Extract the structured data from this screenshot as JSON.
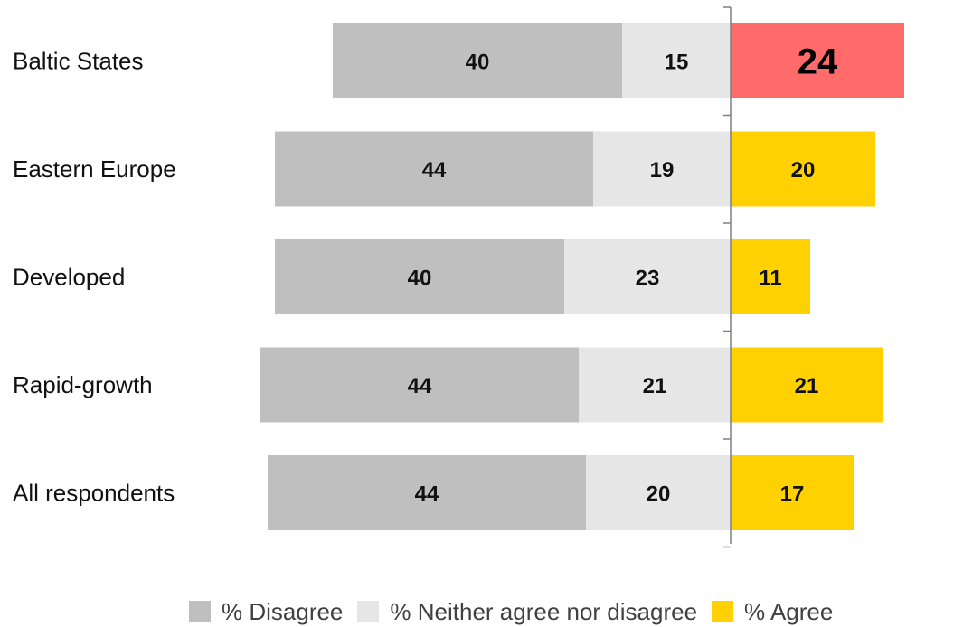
{
  "chart_data": {
    "type": "bar",
    "orientation": "horizontal-diverging",
    "stacked": true,
    "categories": [
      "Baltic States",
      "Eastern Europe",
      "Developed",
      "Rapid-growth",
      "All respondents"
    ],
    "series": [
      {
        "name": "% Disagree",
        "values": [
          40,
          44,
          40,
          44,
          44
        ],
        "color": "#bfbfbf"
      },
      {
        "name": "% Neither agree nor disagree",
        "values": [
          15,
          19,
          23,
          21,
          20
        ],
        "color": "#e6e6e6"
      },
      {
        "name": "% Agree",
        "values": [
          24,
          20,
          11,
          21,
          17
        ],
        "color": "#ffd100",
        "highlight": {
          "category": "Baltic States",
          "color": "#ff6b6b"
        }
      }
    ],
    "legend_position": "bottom-right",
    "grid": false
  }
}
